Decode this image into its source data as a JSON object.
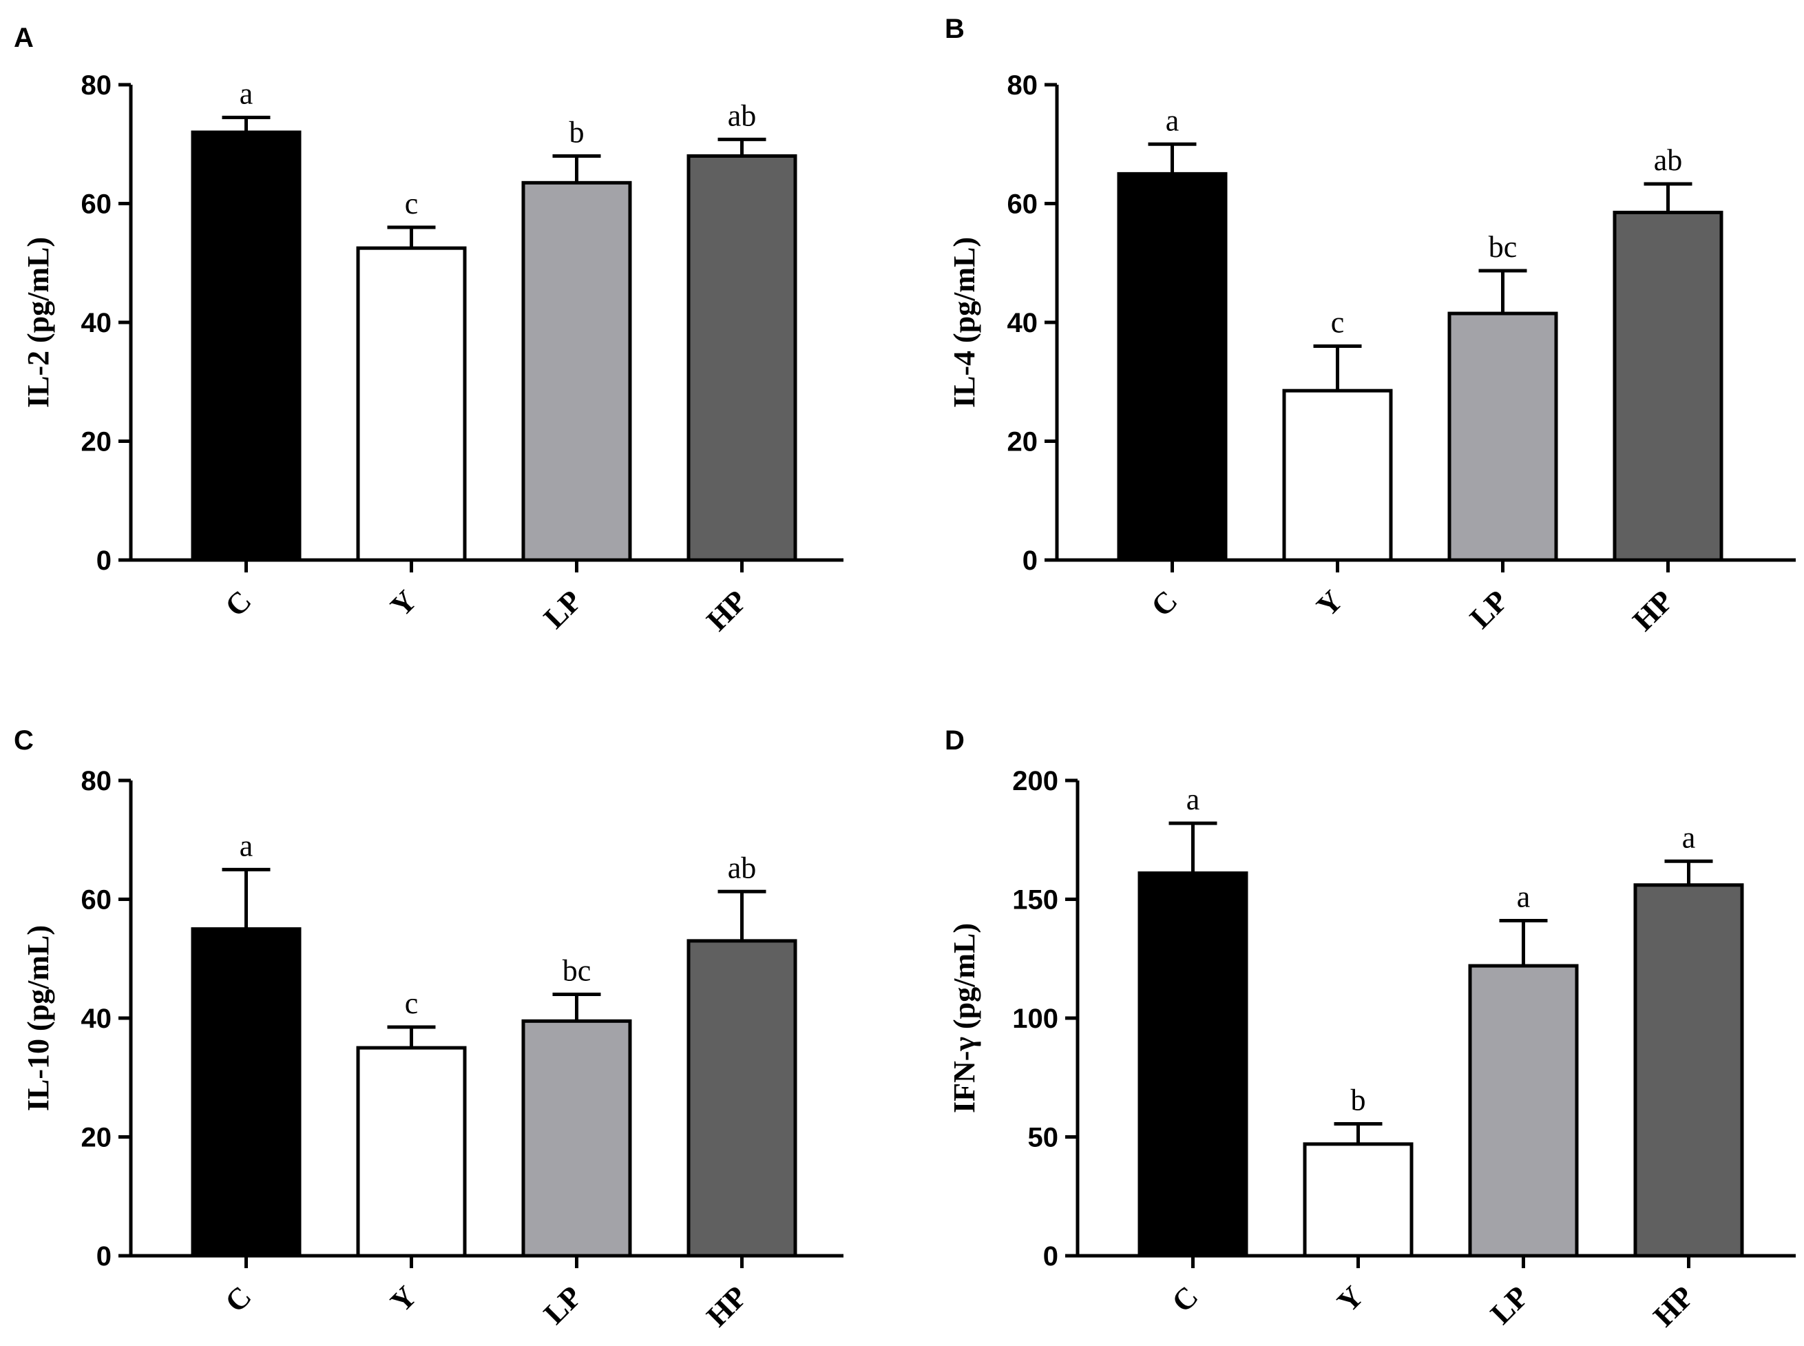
{
  "chart_data": [
    {
      "panel": "A",
      "type": "bar",
      "ylabel": "IL-2 (pg/mL)",
      "ylim": [
        0,
        80
      ],
      "yticks": [
        "0",
        "20",
        "40",
        "60",
        "80"
      ],
      "categories": [
        "C",
        "Y",
        "LP",
        "HP"
      ],
      "values": [
        72,
        52.5,
        63.5,
        68
      ],
      "errors": [
        2.5,
        3.5,
        4.5,
        2.8
      ],
      "letters": [
        "a",
        "c",
        "b",
        "ab"
      ],
      "colors": [
        "#000000",
        "#ffffff",
        "#a3a3a8",
        "#606060"
      ]
    },
    {
      "panel": "B",
      "type": "bar",
      "ylabel": "IL-4 (pg/mL)",
      "ylim": [
        0,
        80
      ],
      "yticks": [
        "0",
        "20",
        "40",
        "60",
        "80"
      ],
      "categories": [
        "C",
        "Y",
        "LP",
        "HP"
      ],
      "values": [
        65,
        28.5,
        41.5,
        58.5
      ],
      "errors": [
        5,
        7.5,
        7.2,
        4.8
      ],
      "letters": [
        "a",
        "c",
        "bc",
        "ab"
      ],
      "colors": [
        "#000000",
        "#ffffff",
        "#a3a3a8",
        "#606060"
      ]
    },
    {
      "panel": "C",
      "type": "bar",
      "ylabel": "IL-10 (pg/mL)",
      "ylim": [
        0,
        80
      ],
      "yticks": [
        "0",
        "20",
        "40",
        "60",
        "80"
      ],
      "categories": [
        "C",
        "Y",
        "LP",
        "HP"
      ],
      "values": [
        55,
        35,
        39.5,
        53
      ],
      "errors": [
        10,
        3.5,
        4.5,
        8.3
      ],
      "letters": [
        "a",
        "c",
        "bc",
        "ab"
      ],
      "colors": [
        "#000000",
        "#ffffff",
        "#a3a3a8",
        "#606060"
      ]
    },
    {
      "panel": "D",
      "type": "bar",
      "ylabel": "IFN-γ (pg/mL)",
      "ylim": [
        0,
        200
      ],
      "yticks": [
        "0",
        "50",
        "100",
        "150",
        "200"
      ],
      "categories": [
        "C",
        "Y",
        "LP",
        "HP"
      ],
      "values": [
        161,
        47,
        122,
        156
      ],
      "errors": [
        21,
        8.5,
        19,
        10
      ],
      "letters": [
        "a",
        "b",
        "a",
        "a"
      ],
      "colors": [
        "#000000",
        "#ffffff",
        "#a3a3a8",
        "#606060"
      ]
    }
  ]
}
